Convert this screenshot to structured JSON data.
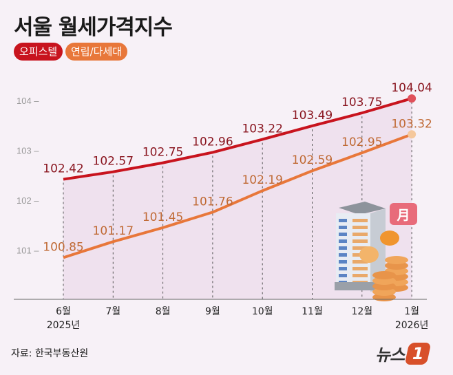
{
  "chart_data": {
    "type": "line",
    "title": "서울 월세가격지수",
    "categories": [
      "6월",
      "7월",
      "8월",
      "9월",
      "10월",
      "11월",
      "12월",
      "1월"
    ],
    "year_labels": {
      "0": "2025년",
      "7": "2026년"
    },
    "series": [
      {
        "name": "오피스텔",
        "color": "#c8141e",
        "label_color": "#8a1620",
        "values": [
          102.42,
          102.57,
          102.75,
          102.96,
          103.22,
          103.49,
          103.75,
          104.04
        ]
      },
      {
        "name": "연립/다세대",
        "color": "#e8773a",
        "label_color": "#c06a35",
        "values": [
          100.85,
          101.17,
          101.45,
          101.76,
          102.19,
          102.59,
          102.95,
          103.32
        ]
      }
    ],
    "yticks": [
      101,
      102,
      103,
      104
    ],
    "ylim": [
      100.1,
      104.4
    ],
    "grid": false,
    "legend": "top-left",
    "xlabel": "",
    "ylabel": ""
  },
  "source": "자료: 한국부동산원",
  "logo": {
    "text": "뉴스",
    "mark": "1"
  },
  "illustration": {
    "badge": "月"
  }
}
